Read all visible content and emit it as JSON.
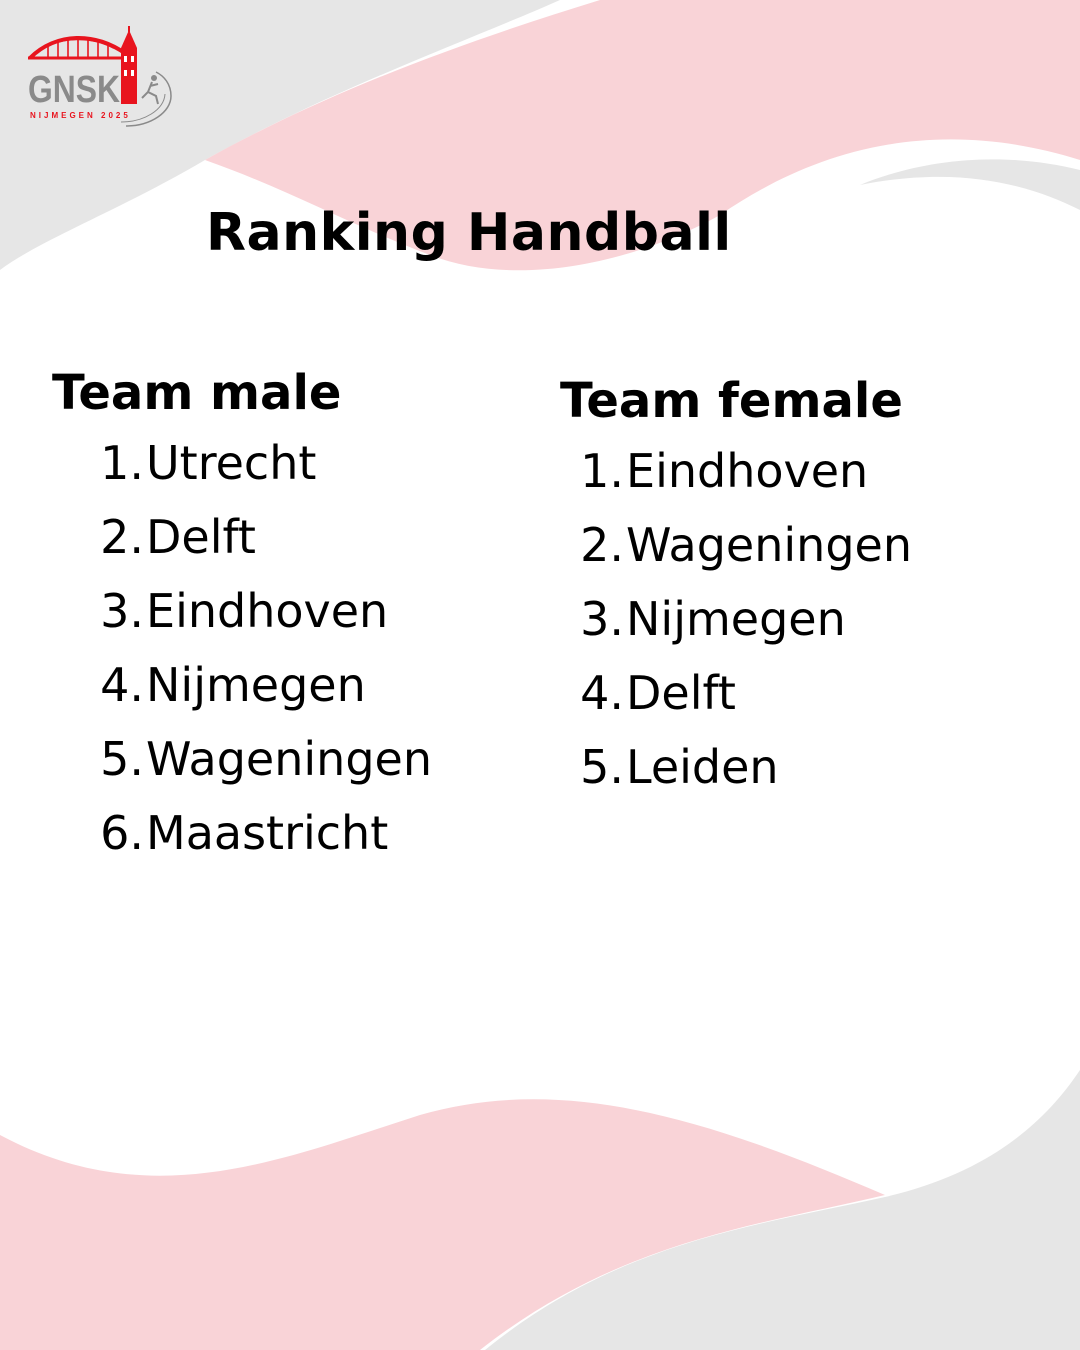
{
  "logo": {
    "name": "GNSK",
    "subtitle": "NIJMEGEN 2025"
  },
  "title": "Ranking Handball",
  "colors": {
    "accent_red": "#e8141e",
    "logo_grey": "#8a8a8a",
    "background_pink": "#f9d3d7",
    "background_grey": "#e6e6e6",
    "text": "#000000"
  },
  "columns": [
    {
      "heading": "Team male",
      "ranks": [
        {
          "number": "1.",
          "team": "Utrecht"
        },
        {
          "number": "2.",
          "team": "Delft"
        },
        {
          "number": "3.",
          "team": "Eindhoven"
        },
        {
          "number": "4.",
          "team": "Nijmegen"
        },
        {
          "number": "5.",
          "team": "Wageningen"
        },
        {
          "number": "6.",
          "team": "Maastricht"
        }
      ]
    },
    {
      "heading": "Team female",
      "ranks": [
        {
          "number": "1.",
          "team": "Eindhoven"
        },
        {
          "number": "2.",
          "team": "Wageningen"
        },
        {
          "number": "3.",
          "team": "Nijmegen"
        },
        {
          "number": "4.",
          "team": "Delft"
        },
        {
          "number": "5.",
          "team": "Leiden"
        }
      ]
    }
  ]
}
